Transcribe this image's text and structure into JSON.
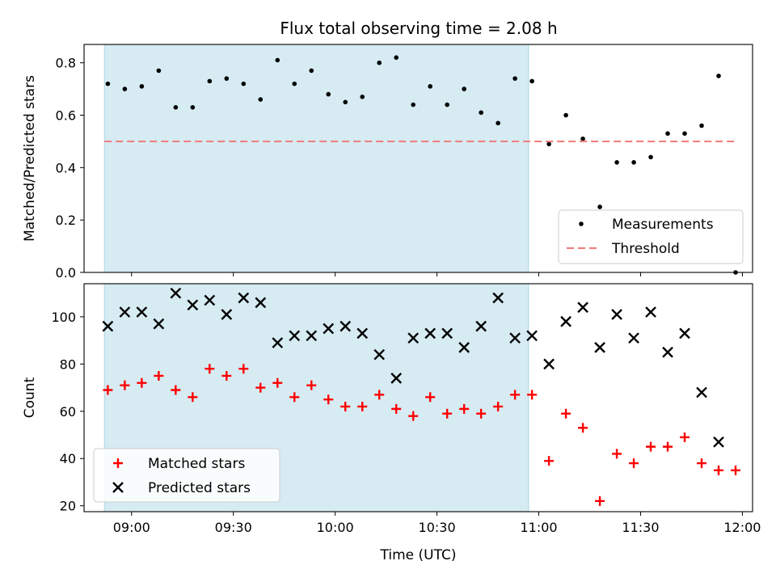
{
  "chart_data": [
    {
      "type": "scatter",
      "title": "Flux total observing time = 2.08 h",
      "xlabel": "",
      "ylabel": "Matched/Predicted stars",
      "ylim": [
        0,
        0.87
      ],
      "yticks": [
        "0.0",
        "0.2",
        "0.4",
        "0.6",
        "0.8"
      ],
      "xtime_range": [
        "08:46",
        "12:03"
      ],
      "shaded_span": [
        "08:52",
        "10:57"
      ],
      "shade_color": "#add8e6",
      "legend": {
        "position": "lower right",
        "entries": [
          "Measurements",
          "Threshold"
        ]
      },
      "series": [
        {
          "name": "Measurements",
          "marker": "dot",
          "color": "#000000",
          "x": [
            "08:53",
            "08:58",
            "09:03",
            "09:08",
            "09:13",
            "09:18",
            "09:23",
            "09:28",
            "09:33",
            "09:38",
            "09:43",
            "09:48",
            "09:53",
            "09:58",
            "10:03",
            "10:08",
            "10:13",
            "10:18",
            "10:23",
            "10:28",
            "10:33",
            "10:38",
            "10:43",
            "10:48",
            "10:53",
            "10:58",
            "11:03",
            "11:08",
            "11:13",
            "11:18",
            "11:23",
            "11:28",
            "11:33",
            "11:38",
            "11:43",
            "11:48",
            "11:53",
            "11:58"
          ],
          "y": [
            0.72,
            0.7,
            0.71,
            0.77,
            0.63,
            0.63,
            0.73,
            0.74,
            0.72,
            0.66,
            0.81,
            0.72,
            0.77,
            0.68,
            0.65,
            0.67,
            0.8,
            0.82,
            0.64,
            0.71,
            0.64,
            0.7,
            0.61,
            0.57,
            0.74,
            0.73,
            0.49,
            0.6,
            0.51,
            0.25,
            0.42,
            0.42,
            0.44,
            0.53,
            0.53,
            0.56,
            0.75,
            0.0
          ]
        },
        {
          "name": "Threshold",
          "style": "dashed",
          "color": "#f08080",
          "x": [
            "08:52",
            "11:58"
          ],
          "y": [
            0.5,
            0.5
          ]
        }
      ]
    },
    {
      "type": "scatter",
      "xlabel": "Time (UTC)",
      "ylabel": "Count",
      "ylim": [
        17.5,
        114
      ],
      "yticks": [
        "20",
        "40",
        "60",
        "80",
        "100"
      ],
      "xticks": [
        "09:00",
        "09:30",
        "10:00",
        "10:30",
        "11:00",
        "11:30",
        "12:00"
      ],
      "xtime_range": [
        "08:46",
        "12:03"
      ],
      "shaded_span": [
        "08:52",
        "10:57"
      ],
      "shade_color": "#add8e6",
      "legend": {
        "position": "lower left",
        "entries": [
          "Matched stars",
          "Predicted stars"
        ]
      },
      "series": [
        {
          "name": "Matched stars",
          "marker": "plus",
          "color": "#ff0000",
          "x": [
            "08:53",
            "08:58",
            "09:03",
            "09:08",
            "09:13",
            "09:18",
            "09:23",
            "09:28",
            "09:33",
            "09:38",
            "09:43",
            "09:48",
            "09:53",
            "09:58",
            "10:03",
            "10:08",
            "10:13",
            "10:18",
            "10:23",
            "10:28",
            "10:33",
            "10:38",
            "10:43",
            "10:48",
            "10:53",
            "10:58",
            "11:03",
            "11:08",
            "11:13",
            "11:18",
            "11:23",
            "11:28",
            "11:33",
            "11:38",
            "11:43",
            "11:48",
            "11:53",
            "11:58"
          ],
          "y": [
            69,
            71,
            72,
            75,
            69,
            66,
            78,
            75,
            78,
            70,
            72,
            66,
            71,
            65,
            62,
            62,
            67,
            61,
            58,
            66,
            59,
            61,
            59,
            62,
            67,
            67,
            39,
            59,
            53,
            22,
            42,
            38,
            45,
            45,
            49,
            38,
            35,
            35
          ]
        },
        {
          "name": "Predicted stars",
          "marker": "x",
          "color": "#000000",
          "x": [
            "08:53",
            "08:58",
            "09:03",
            "09:08",
            "09:13",
            "09:18",
            "09:23",
            "09:28",
            "09:33",
            "09:38",
            "09:43",
            "09:48",
            "09:53",
            "09:58",
            "10:03",
            "10:08",
            "10:13",
            "10:18",
            "10:23",
            "10:28",
            "10:33",
            "10:38",
            "10:43",
            "10:48",
            "10:53",
            "10:58",
            "11:03",
            "11:08",
            "11:13",
            "11:18",
            "11:23",
            "11:28",
            "11:33",
            "11:38",
            "11:43",
            "11:48",
            "11:53"
          ],
          "y": [
            96,
            102,
            102,
            97,
            110,
            105,
            107,
            101,
            108,
            106,
            89,
            92,
            92,
            95,
            96,
            93,
            84,
            74,
            91,
            93,
            93,
            87,
            96,
            108,
            91,
            92,
            80,
            98,
            104,
            87,
            101,
            91,
            102,
            85,
            93,
            68,
            47
          ]
        }
      ]
    }
  ]
}
